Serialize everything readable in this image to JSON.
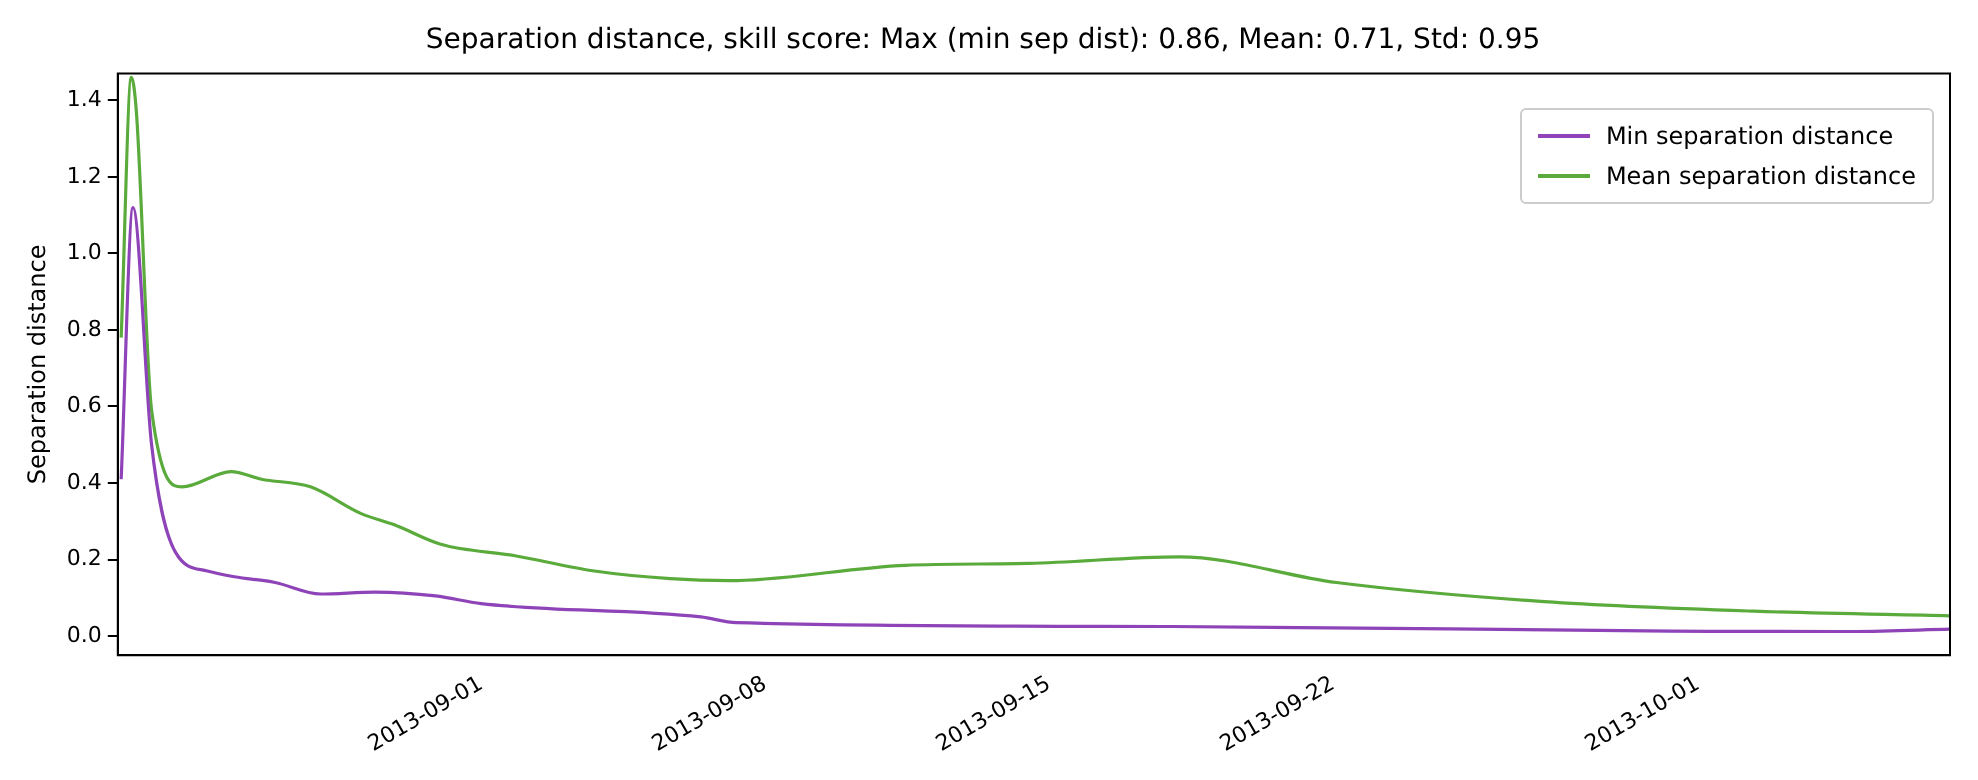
{
  "chart_data": {
    "type": "line",
    "title": "Separation distance, skill score: Max (min sep dist): 0.86, Mean: 0.71, Std: 0.95",
    "ylabel": "Separation distance",
    "xlim": [
      "2013-08-23T01:00",
      "2013-10-07T05:00"
    ],
    "xticks": [
      "2013-09-01",
      "2013-09-08",
      "2013-09-15",
      "2013-09-22",
      "2013-10-01"
    ],
    "ylim": [
      -0.05,
      1.47
    ],
    "yticks": [
      {
        "value": 0,
        "label": "0.0"
      },
      {
        "value": 0.2,
        "label": "0.2"
      },
      {
        "value": 0.4,
        "label": "0.4"
      },
      {
        "value": 0.6,
        "label": "0.6"
      },
      {
        "value": 0.8,
        "label": "0.8"
      },
      {
        "value": 1,
        "label": "1.0"
      },
      {
        "value": 1.2,
        "label": "1.2"
      },
      {
        "value": 1.4,
        "label": "1.4"
      }
    ],
    "grid": false,
    "legend": "top right",
    "marker": "none",
    "line_style": "solid",
    "series": [
      {
        "name": "Min separation distance",
        "color": "#8e44b8",
        "x": [
          "2013-08-23T03:00",
          "2013-08-23T10:00",
          "2013-08-23T21:00",
          "2013-08-24T11:00",
          "2013-08-25T06:00",
          "2013-08-25T22:00",
          "2013-08-26T22:00",
          "2013-08-28T01:00",
          "2013-08-29T09:00",
          "2013-08-30T21:00",
          "2013-09-01T00:00",
          "2013-09-06T10:00",
          "2013-09-07T07:00",
          "2013-09-18T00:00",
          "2013-09-30T08:00",
          "2013-10-04T21:00",
          "2013-10-07T05:00"
        ],
        "values": [
          0.41,
          1.12,
          0.5,
          0.22,
          0.17,
          0.155,
          0.14,
          0.11,
          0.115,
          0.105,
          0.085,
          0.05,
          0.035,
          0.025,
          0.013,
          0.012,
          0.018
        ]
      },
      {
        "name": "Mean separation distance",
        "color": "#5aab3c",
        "x": [
          "2013-08-23T03:00",
          "2013-08-23T09:00",
          "2013-08-23T12:00",
          "2013-08-23T21:00",
          "2013-08-24T15:00",
          "2013-08-25T20:00",
          "2013-08-26T14:00",
          "2013-08-27T19:00",
          "2013-08-29T01:00",
          "2013-08-29T21:00",
          "2013-08-31T00:00",
          "2013-09-01T20:00",
          "2013-09-03T19:00",
          "2013-09-05T16:00",
          "2013-09-07T03:00",
          "2013-09-11T11:00",
          "2013-09-14T12:00",
          "2013-09-18T05:00",
          "2013-09-22T02:00",
          "2013-09-27T05:00",
          "2013-10-02T09:00",
          "2013-10-07T05:00"
        ],
        "values": [
          0.78,
          1.46,
          1.37,
          0.59,
          0.39,
          0.43,
          0.41,
          0.39,
          0.32,
          0.29,
          0.24,
          0.21,
          0.17,
          0.15,
          0.145,
          0.185,
          0.19,
          0.207,
          0.14,
          0.09,
          0.065,
          0.053
        ]
      }
    ]
  }
}
